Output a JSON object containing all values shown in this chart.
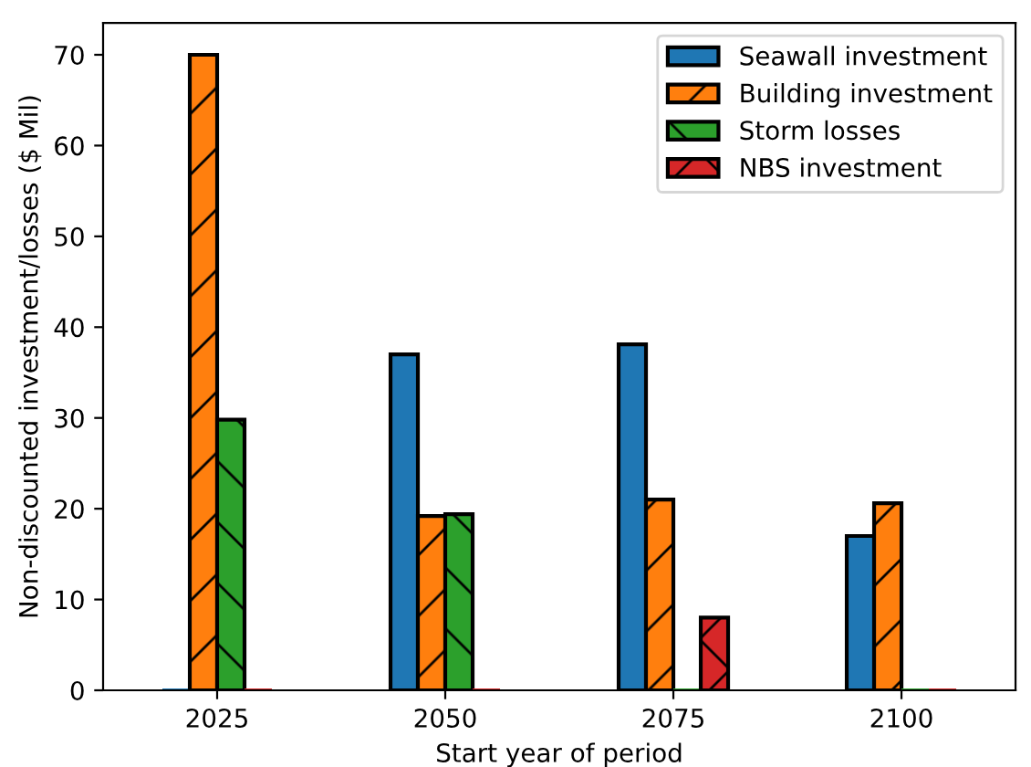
{
  "chart_data": {
    "type": "bar",
    "xlabel": "Start year of period",
    "ylabel": "Non-discounted investment/losses ($ Mil)",
    "categories": [
      "2025",
      "2050",
      "2075",
      "2100"
    ],
    "series": [
      {
        "name": "Seawall investment",
        "color": "#1f77b4",
        "values": [
          0,
          37.0,
          38.1,
          17.0
        ]
      },
      {
        "name": "Building investment",
        "color": "#ff7f0e",
        "values": [
          70.0,
          19.2,
          21.0,
          20.6
        ]
      },
      {
        "name": "Storm losses",
        "color": "#2ca02c",
        "values": [
          29.8,
          19.4,
          0,
          0
        ]
      },
      {
        "name": "NBS investment",
        "color": "#d62728",
        "values": [
          0,
          0,
          8.0,
          0
        ]
      }
    ],
    "ylim": [
      0,
      73.5
    ],
    "yticks": [
      0,
      10,
      20,
      30,
      40,
      50,
      60,
      70
    ],
    "grid": false,
    "legend": "top right"
  }
}
